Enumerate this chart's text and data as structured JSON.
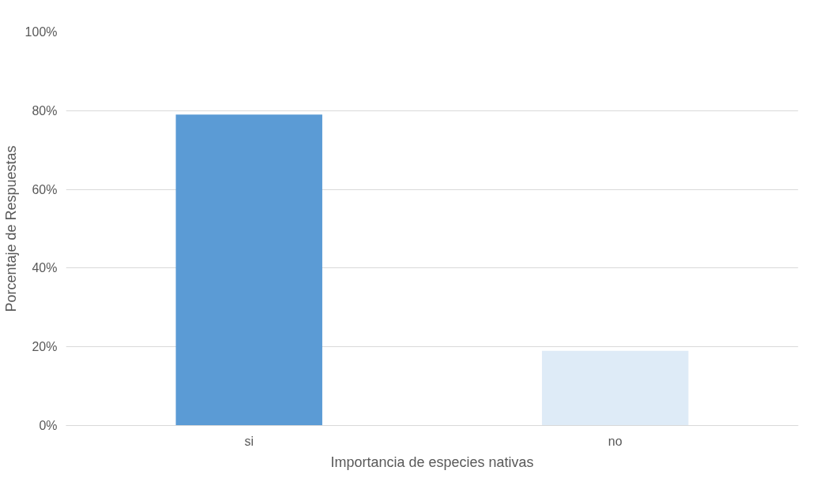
{
  "chart_data": {
    "type": "bar",
    "xlabel": "Importancia de especies nativas",
    "ylabel": "Porcentaje de Respuestas",
    "categories": [
      "si",
      "no"
    ],
    "values": [
      79,
      19
    ],
    "colors": [
      "#5b9bd5",
      "#deebf7"
    ],
    "ylim": [
      0,
      100
    ],
    "yticks": [
      {
        "value": 0,
        "label": "0%"
      },
      {
        "value": 20,
        "label": "20%"
      },
      {
        "value": 40,
        "label": "40%"
      },
      {
        "value": 60,
        "label": "60%"
      },
      {
        "value": 80,
        "label": "80%"
      },
      {
        "value": 100,
        "label": "100%"
      }
    ],
    "grid": "y"
  }
}
